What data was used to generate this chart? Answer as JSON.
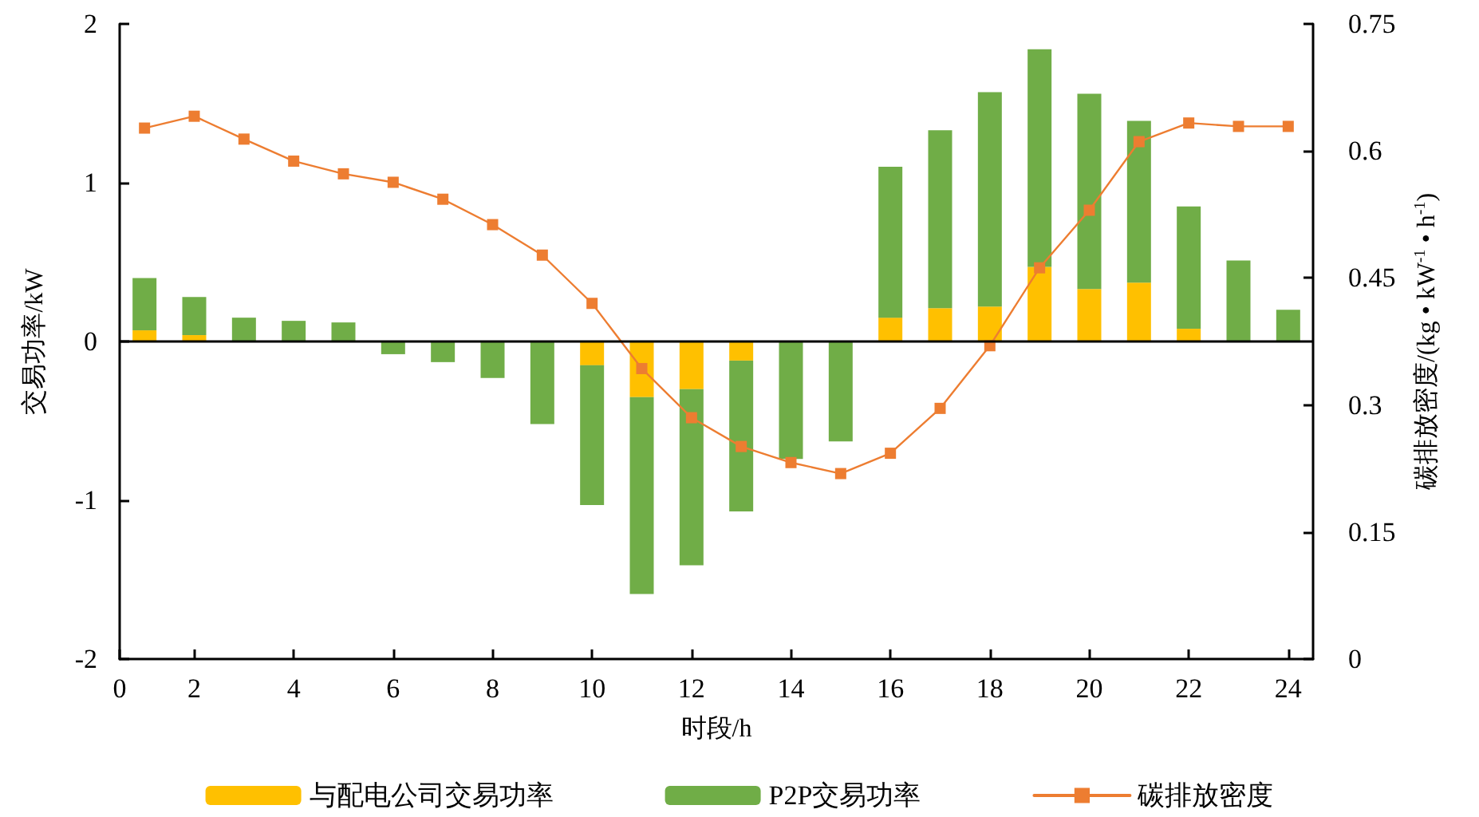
{
  "chart_data": {
    "type": "bar",
    "stacked": true,
    "xlabel": "时段/h",
    "ylabel": "交易功率/kW",
    "y2label": "碳排放密度/(kg • kW$^{-1}$ • h$^{-1}$)",
    "x": [
      1,
      2,
      3,
      4,
      5,
      6,
      7,
      8,
      9,
      10,
      11,
      12,
      13,
      14,
      15,
      16,
      17,
      18,
      19,
      20,
      21,
      22,
      23,
      24
    ],
    "xlim": [
      0.5,
      24.5
    ],
    "xticks": [
      {
        "value": 0.5,
        "label": "0"
      },
      2,
      4,
      6,
      8,
      10,
      12,
      14,
      16,
      18,
      20,
      22,
      24
    ],
    "ylim": [
      -2,
      2
    ],
    "yticks": [
      -2,
      -1,
      0,
      1,
      2
    ],
    "y2lim": [
      0,
      0.75
    ],
    "y2ticks": [
      0,
      0.15,
      0.3,
      0.45,
      0.6,
      0.75
    ],
    "series": [
      {
        "name": "与配电公司交易功率",
        "color": "#ffc000",
        "values": [
          0.07,
          0.04,
          0,
          0,
          0,
          0,
          0,
          0,
          0,
          -0.15,
          -0.35,
          -0.3,
          -0.12,
          0,
          0,
          0.15,
          0.21,
          0.22,
          0.47,
          0.33,
          0.37,
          0.08,
          0,
          0
        ]
      },
      {
        "name": "P2P交易功率",
        "color": "#70ad47",
        "values": [
          0.33,
          0.24,
          0.15,
          0.13,
          0.12,
          -0.08,
          -0.13,
          -0.23,
          -0.52,
          -0.88,
          -1.24,
          -1.11,
          -0.95,
          -0.74,
          -0.63,
          0.95,
          1.12,
          1.35,
          1.37,
          1.23,
          1.02,
          0.77,
          0.51,
          0.2
        ]
      },
      {
        "name": "碳排放密度",
        "type": "line",
        "axis": "y2",
        "color": "#ed7d31",
        "marker": "square",
        "values": [
          0.627,
          0.641,
          0.614,
          0.588,
          0.573,
          0.563,
          0.543,
          0.513,
          0.477,
          0.42,
          0.343,
          0.285,
          0.251,
          0.232,
          0.219,
          0.243,
          0.296,
          0.37,
          0.462,
          0.53,
          0.611,
          0.633,
          0.629,
          0.629
        ]
      }
    ],
    "ref_lines": [
      {
        "axis": "y",
        "value": 0,
        "color": "#000000"
      }
    ],
    "grid": false,
    "legend": "bottom"
  }
}
